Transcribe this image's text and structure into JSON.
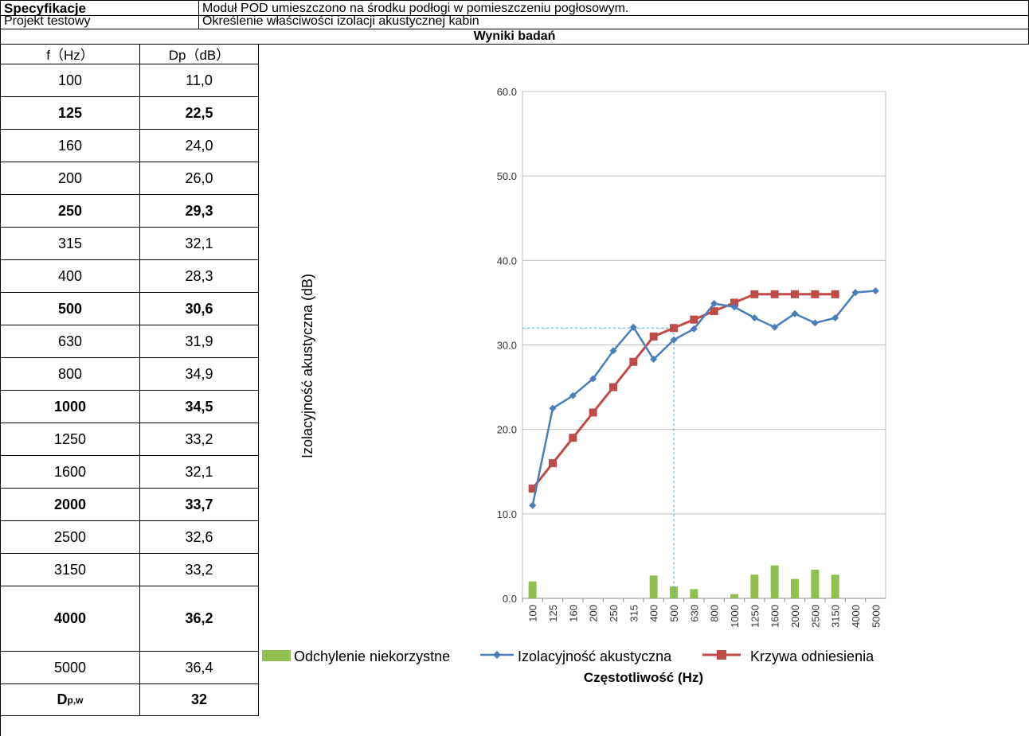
{
  "header": {
    "spec_label": "Specyfikacje",
    "spec_value": "Moduł POD umieszczono na środku podłogi w pomieszczeniu pogłosowym.",
    "project_label": "Projekt testowy",
    "project_value": "Określenie właściwości izolacji akustycznej kabin",
    "results_title": "Wyniki badań"
  },
  "table": {
    "col_f": "f（Hz）",
    "col_dp": "Dp（dB）",
    "rows": [
      {
        "f": "100",
        "dp": "11,0",
        "bold": false
      },
      {
        "f": "125",
        "dp": "22,5",
        "bold": true
      },
      {
        "f": "160",
        "dp": "24,0",
        "bold": false
      },
      {
        "f": "200",
        "dp": "26,0",
        "bold": false
      },
      {
        "f": "250",
        "dp": "29,3",
        "bold": true
      },
      {
        "f": "315",
        "dp": "32,1",
        "bold": false
      },
      {
        "f": "400",
        "dp": "28,3",
        "bold": false
      },
      {
        "f": "500",
        "dp": "30,6",
        "bold": true
      },
      {
        "f": "630",
        "dp": "31,9",
        "bold": false
      },
      {
        "f": "800",
        "dp": "34,9",
        "bold": false
      },
      {
        "f": "1000",
        "dp": "34,5",
        "bold": true
      },
      {
        "f": "1250",
        "dp": "33,2",
        "bold": false
      },
      {
        "f": "1600",
        "dp": "32,1",
        "bold": false
      },
      {
        "f": "2000",
        "dp": "33,7",
        "bold": true
      },
      {
        "f": "2500",
        "dp": "32,6",
        "bold": false
      },
      {
        "f": "3150",
        "dp": "33,2",
        "bold": false
      },
      {
        "f": "4000",
        "dp": "36,2",
        "bold": true
      },
      {
        "f": "5000",
        "dp": "36,4",
        "bold": false
      }
    ],
    "dpw_label_main": "D",
    "dpw_label_sub": "p,w",
    "dpw_value": "32"
  },
  "chart_data": {
    "type": "line",
    "xlabel": "Częstotliwość (Hz)",
    "ylabel": "Izolacyjność akustyczna (dB)",
    "ylim": [
      0,
      60
    ],
    "yticks": [
      "0.0",
      "10.0",
      "20.0",
      "30.0",
      "40.0",
      "50.0",
      "60.0"
    ],
    "ytick_values": [
      0,
      10,
      20,
      30,
      40,
      50,
      60
    ],
    "categories": [
      "100",
      "125",
      "160",
      "200",
      "250",
      "315",
      "400",
      "500",
      "630",
      "800",
      "1000",
      "1250",
      "1600",
      "2000",
      "2500",
      "3150",
      "4000",
      "5000"
    ],
    "grid": true,
    "legend_position": "bottom",
    "reference_mark": {
      "x": "500",
      "y": 32
    },
    "series": [
      {
        "name": "Odchylenie niekorzystne",
        "type": "bar",
        "color": "#92c050",
        "values": [
          2.0,
          0,
          0,
          0,
          0,
          0,
          2.7,
          1.4,
          1.1,
          0,
          0.5,
          2.8,
          3.9,
          2.3,
          3.4,
          2.8,
          0,
          0
        ]
      },
      {
        "name": "Izolacyjność akustyczna",
        "type": "line",
        "color": "#4a7ebb",
        "marker": "diamond",
        "values": [
          11.0,
          22.5,
          24.0,
          26.0,
          29.3,
          32.1,
          28.3,
          30.6,
          31.9,
          34.9,
          34.5,
          33.2,
          32.1,
          33.7,
          32.6,
          33.2,
          36.2,
          36.4
        ]
      },
      {
        "name": "Krzywa odniesienia",
        "type": "line",
        "color": "#be4b48",
        "marker": "square",
        "values": [
          13,
          16,
          19,
          22,
          25,
          28,
          31,
          32,
          33,
          34,
          35,
          36,
          36,
          36,
          36,
          36,
          null,
          null
        ]
      }
    ]
  }
}
